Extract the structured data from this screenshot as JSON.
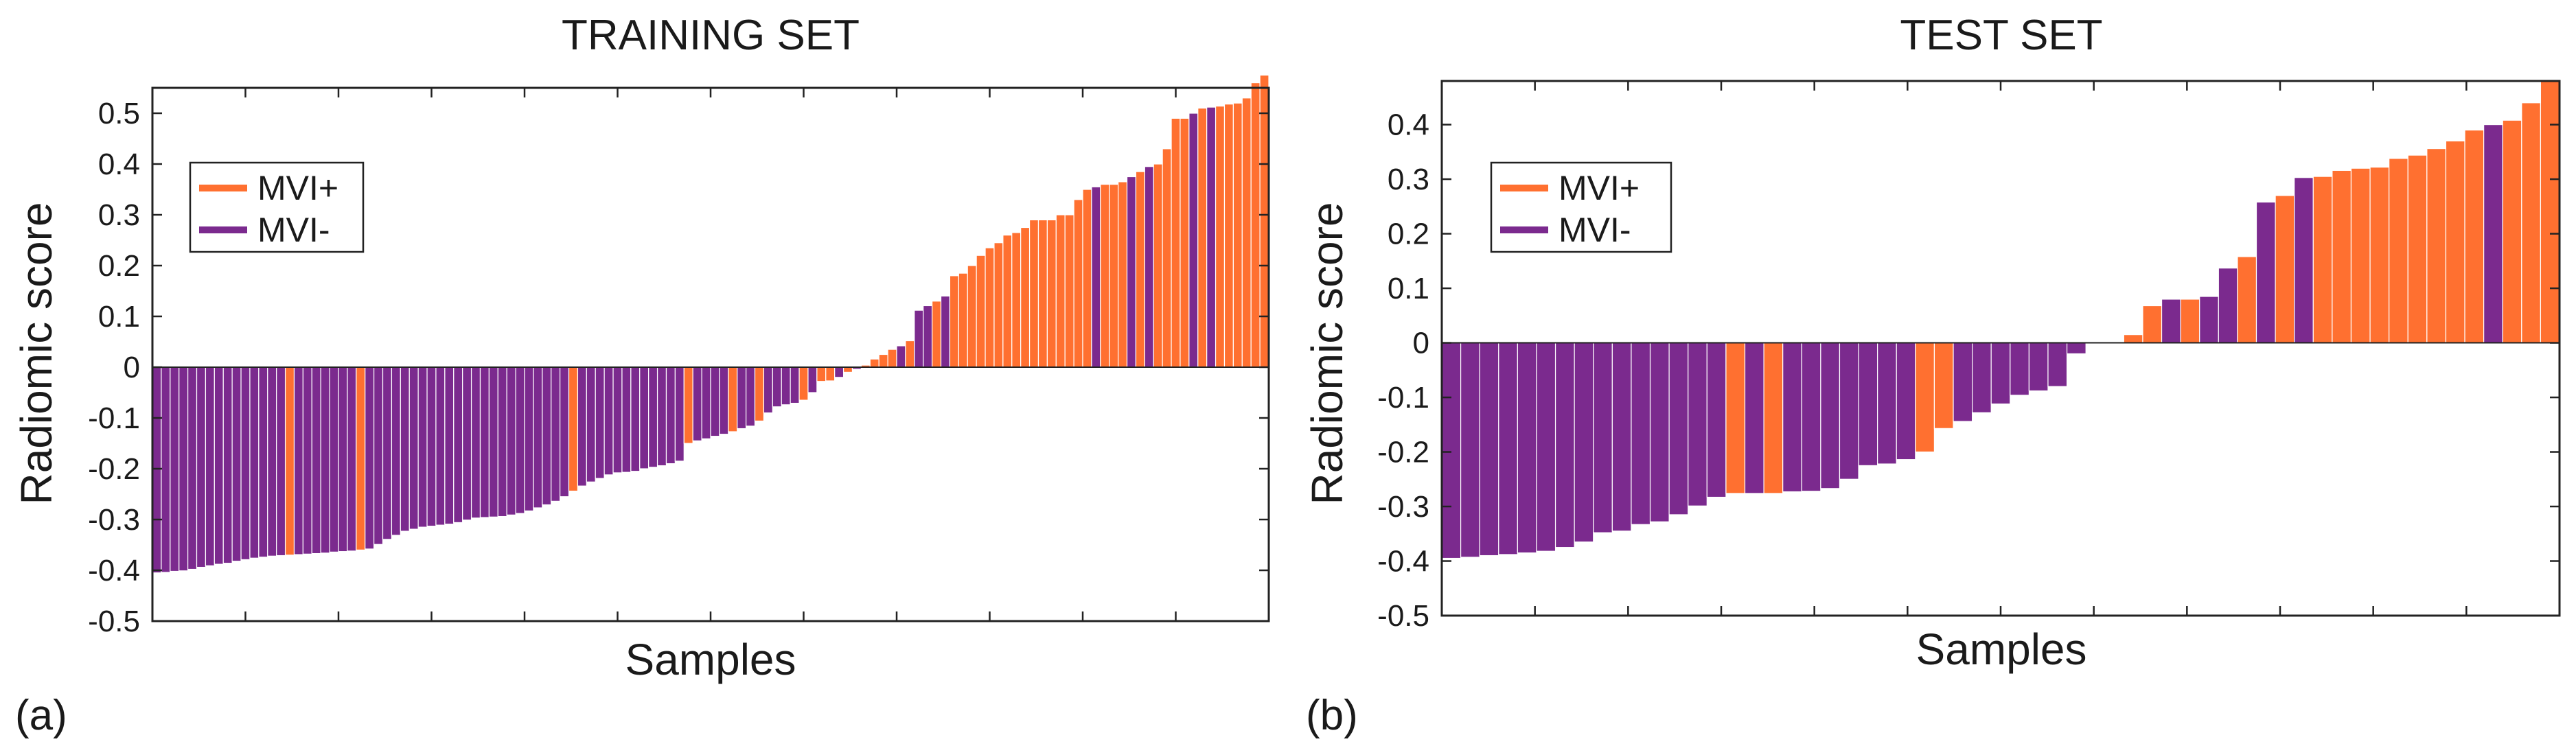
{
  "chart_data": [
    {
      "type": "bar",
      "title": "TRAINING SET",
      "panel_label": "(a)",
      "xlabel": "Samples",
      "ylabel": "Radiomic score",
      "ylim": [
        -0.5,
        0.55
      ],
      "yticks": [
        -0.5,
        -0.4,
        -0.3,
        -0.2,
        -0.1,
        0,
        0.1,
        0.2,
        0.3,
        0.4,
        0.5
      ],
      "ytick_labels": [
        "-0.5",
        "-0.4",
        "-0.3",
        "-0.2",
        "-0.1",
        "0",
        "0.1",
        "0.2",
        "0.3",
        "0.4",
        "0.5"
      ],
      "grid": false,
      "legend_position": "upper-left",
      "legend": [
        {
          "label": "MVI+",
          "color": "#ff7030"
        },
        {
          "label": "MVI-",
          "color": "#7b2a8e"
        }
      ],
      "values": [
        -0.405,
        -0.404,
        -0.402,
        -0.401,
        -0.398,
        -0.394,
        -0.391,
        -0.388,
        -0.386,
        -0.382,
        -0.379,
        -0.376,
        -0.374,
        -0.372,
        -0.371,
        -0.37,
        -0.369,
        -0.368,
        -0.367,
        -0.366,
        -0.364,
        -0.363,
        -0.362,
        -0.36,
        -0.358,
        -0.349,
        -0.339,
        -0.331,
        -0.323,
        -0.319,
        -0.315,
        -0.313,
        -0.311,
        -0.309,
        -0.306,
        -0.301,
        -0.297,
        -0.296,
        -0.295,
        -0.294,
        -0.291,
        -0.288,
        -0.283,
        -0.277,
        -0.271,
        -0.264,
        -0.255,
        -0.244,
        -0.234,
        -0.226,
        -0.219,
        -0.212,
        -0.208,
        -0.207,
        -0.205,
        -0.2,
        -0.197,
        -0.194,
        -0.19,
        -0.185,
        -0.15,
        -0.145,
        -0.141,
        -0.136,
        -0.132,
        -0.127,
        -0.121,
        -0.116,
        -0.106,
        -0.09,
        -0.078,
        -0.074,
        -0.071,
        -0.065,
        -0.05,
        -0.028,
        -0.027,
        -0.02,
        -0.01,
        -0.004,
        0.004,
        0.016,
        0.025,
        0.035,
        0.042,
        0.052,
        0.112,
        0.121,
        0.13,
        0.14,
        0.18,
        0.185,
        0.2,
        0.22,
        0.235,
        0.245,
        0.26,
        0.265,
        0.275,
        0.29,
        0.29,
        0.29,
        0.3,
        0.3,
        0.33,
        0.35,
        0.355,
        0.36,
        0.36,
        0.365,
        0.375,
        0.385,
        0.395,
        0.4,
        0.43,
        0.49,
        0.49,
        0.5,
        0.51,
        0.512,
        0.514,
        0.518,
        0.52,
        0.53,
        0.56,
        0.575
      ],
      "mvi_flags": [
        "-",
        "-",
        "-",
        "-",
        "-",
        "-",
        "-",
        "-",
        "-",
        "-",
        "-",
        "-",
        "-",
        "-",
        "-",
        "+",
        "-",
        "-",
        "-",
        "-",
        "-",
        "-",
        "-",
        "+",
        "-",
        "-",
        "-",
        "-",
        "-",
        "-",
        "-",
        "-",
        "-",
        "-",
        "-",
        "-",
        "-",
        "-",
        "-",
        "-",
        "-",
        "-",
        "-",
        "-",
        "-",
        "-",
        "-",
        "+",
        "-",
        "-",
        "-",
        "-",
        "-",
        "-",
        "-",
        "-",
        "-",
        "-",
        "-",
        "-",
        "+",
        "-",
        "-",
        "-",
        "-",
        "+",
        "-",
        "-",
        "+",
        "-",
        "-",
        "-",
        "-",
        "+",
        "-",
        "+",
        "+",
        "-",
        "+",
        "-",
        "+",
        "+",
        "+",
        "+",
        "-",
        "+",
        "-",
        "-",
        "+",
        "-",
        "+",
        "+",
        "+",
        "+",
        "+",
        "+",
        "+",
        "+",
        "+",
        "+",
        "+",
        "+",
        "+",
        "+",
        "+",
        "+",
        "-",
        "+",
        "+",
        "+",
        "-",
        "+",
        "-",
        "+",
        "+",
        "+",
        "+",
        "-",
        "+",
        "-",
        "+",
        "+",
        "+",
        "+",
        "+",
        "+",
        "+"
      ]
    },
    {
      "type": "bar",
      "title": "TEST SET",
      "panel_label": "(b)",
      "xlabel": "Samples",
      "ylabel": "Radiomic score",
      "ylim": [
        -0.5,
        0.48
      ],
      "yticks": [
        -0.5,
        -0.4,
        -0.3,
        -0.2,
        -0.1,
        0,
        0.1,
        0.2,
        0.3,
        0.4
      ],
      "ytick_labels": [
        "-0.5",
        "-0.4",
        "-0.3",
        "-0.2",
        "-0.1",
        "0",
        "0.1",
        "0.2",
        "0.3",
        "0.4"
      ],
      "grid": false,
      "legend_position": "upper-left",
      "legend": [
        {
          "label": "MVI+",
          "color": "#ff7030"
        },
        {
          "label": "MVI-",
          "color": "#7b2a8e"
        }
      ],
      "values": [
        -0.395,
        -0.393,
        -0.39,
        -0.388,
        -0.385,
        -0.382,
        -0.375,
        -0.365,
        -0.348,
        -0.345,
        -0.333,
        -0.328,
        -0.315,
        -0.299,
        -0.283,
        -0.276,
        -0.276,
        -0.276,
        -0.273,
        -0.272,
        -0.267,
        -0.25,
        -0.225,
        -0.222,
        -0.214,
        -0.2,
        -0.157,
        -0.144,
        -0.128,
        -0.112,
        -0.096,
        -0.088,
        -0.08,
        -0.02,
        0.0,
        0.0,
        0.015,
        0.068,
        0.08,
        0.08,
        0.085,
        0.137,
        0.158,
        0.258,
        0.27,
        0.303,
        0.305,
        0.316,
        0.32,
        0.322,
        0.338,
        0.344,
        0.356,
        0.37,
        0.39,
        0.4,
        0.408,
        0.44,
        0.48
      ],
      "mvi_flags": [
        "-",
        "-",
        "-",
        "-",
        "-",
        "-",
        "-",
        "-",
        "-",
        "-",
        "-",
        "-",
        "-",
        "-",
        "-",
        "+",
        "-",
        "+",
        "-",
        "-",
        "-",
        "-",
        "-",
        "-",
        "-",
        "+",
        "+",
        "-",
        "-",
        "-",
        "-",
        "-",
        "-",
        "-",
        "-",
        "-",
        "+",
        "+",
        "-",
        "+",
        "-",
        "-",
        "+",
        "-",
        "+",
        "-",
        "+",
        "+",
        "+",
        "+",
        "+",
        "+",
        "+",
        "+",
        "+",
        "-",
        "+",
        "+",
        "+"
      ]
    }
  ]
}
